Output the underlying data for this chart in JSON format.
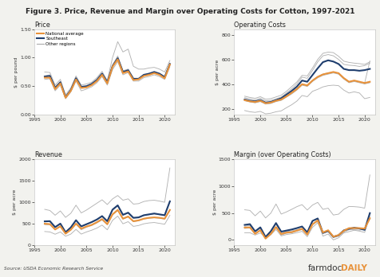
{
  "title": "Figure 3. Price, Revenue and Margin over Operating Costs for Cotton, 1997-2021",
  "source_text": "Source: USDA Economic Research Service",
  "farmdoc_text": "farmdoc",
  "farmdoc_daily_text": "DAILY",
  "years": [
    1997,
    1998,
    1999,
    2000,
    2001,
    2002,
    2003,
    2004,
    2005,
    2006,
    2007,
    2008,
    2009,
    2010,
    2011,
    2012,
    2013,
    2014,
    2015,
    2016,
    2017,
    2018,
    2019,
    2020,
    2021
  ],
  "price": {
    "title": "Price",
    "ylabel": "$ per pound",
    "ylim": [
      0.0,
      1.5
    ],
    "yticks": [
      0.0,
      0.5,
      1.0,
      1.5
    ],
    "yticklabels": [
      "0.00",
      "0.50",
      "1.00",
      "1.50"
    ],
    "national_avg": [
      0.65,
      0.65,
      0.45,
      0.55,
      0.3,
      0.42,
      0.62,
      0.47,
      0.48,
      0.52,
      0.59,
      0.7,
      0.55,
      0.84,
      0.97,
      0.73,
      0.76,
      0.61,
      0.62,
      0.68,
      0.7,
      0.73,
      0.7,
      0.64,
      0.88
    ],
    "southeast": [
      0.67,
      0.68,
      0.47,
      0.57,
      0.31,
      0.43,
      0.64,
      0.49,
      0.5,
      0.54,
      0.61,
      0.72,
      0.57,
      0.85,
      0.99,
      0.75,
      0.78,
      0.63,
      0.63,
      0.7,
      0.72,
      0.75,
      0.72,
      0.66,
      0.89
    ],
    "other_regions": [
      [
        0.68,
        0.7,
        0.49,
        0.58,
        0.32,
        0.44,
        0.63,
        0.48,
        0.51,
        0.54,
        0.61,
        0.72,
        0.57,
        0.87,
        1.03,
        0.77,
        0.8,
        0.64,
        0.64,
        0.7,
        0.72,
        0.75,
        0.72,
        0.67,
        0.89
      ],
      [
        0.62,
        0.63,
        0.42,
        0.52,
        0.28,
        0.4,
        0.59,
        0.42,
        0.45,
        0.49,
        0.56,
        0.67,
        0.52,
        0.79,
        0.93,
        0.7,
        0.74,
        0.59,
        0.59,
        0.65,
        0.67,
        0.7,
        0.67,
        0.62,
        0.84
      ],
      [
        0.75,
        0.74,
        0.52,
        0.62,
        0.35,
        0.47,
        0.68,
        0.52,
        0.54,
        0.57,
        0.65,
        0.76,
        0.6,
        1.0,
        1.28,
        1.1,
        1.15,
        0.85,
        0.8,
        0.8,
        0.82,
        0.83,
        0.8,
        0.75,
        0.95
      ]
    ]
  },
  "operating_costs": {
    "title": "Operating Costs",
    "ylabel": "$ per acre",
    "ylim": [
      150,
      850
    ],
    "yticks": [
      200,
      400,
      600,
      800
    ],
    "yticklabels": [
      "200",
      "400",
      "600",
      "800"
    ],
    "national_avg": [
      270,
      260,
      255,
      265,
      245,
      250,
      265,
      275,
      300,
      330,
      360,
      400,
      390,
      430,
      460,
      480,
      490,
      500,
      490,
      450,
      420,
      430,
      420,
      410,
      420
    ],
    "southeast": [
      275,
      265,
      260,
      270,
      250,
      255,
      270,
      285,
      315,
      345,
      380,
      430,
      420,
      475,
      530,
      580,
      595,
      585,
      565,
      525,
      515,
      515,
      510,
      515,
      525
    ],
    "other_regions": [
      [
        265,
        255,
        248,
        258,
        238,
        243,
        258,
        268,
        295,
        320,
        352,
        392,
        382,
        422,
        452,
        472,
        482,
        492,
        482,
        442,
        412,
        422,
        412,
        402,
        412
      ],
      [
        290,
        280,
        272,
        285,
        265,
        268,
        280,
        295,
        328,
        362,
        402,
        458,
        448,
        512,
        582,
        632,
        642,
        632,
        602,
        562,
        555,
        552,
        545,
        552,
        572
      ],
      [
        185,
        175,
        170,
        178,
        158,
        163,
        175,
        182,
        208,
        232,
        262,
        308,
        298,
        342,
        358,
        378,
        388,
        392,
        388,
        352,
        328,
        338,
        328,
        282,
        292
      ],
      [
        268,
        258,
        250,
        262,
        240,
        245,
        262,
        272,
        298,
        330,
        362,
        402,
        392,
        432,
        462,
        482,
        492,
        498,
        490,
        450,
        418,
        430,
        418,
        410,
        590
      ],
      [
        302,
        292,
        285,
        298,
        278,
        282,
        296,
        310,
        342,
        380,
        418,
        472,
        468,
        532,
        602,
        652,
        662,
        658,
        628,
        588,
        578,
        572,
        568,
        562,
        582
      ]
    ]
  },
  "revenue": {
    "title": "Revenue",
    "ylabel": "$ per acre",
    "ylim": [
      0,
      2000
    ],
    "yticks": [
      0,
      500,
      1000,
      1500,
      2000
    ],
    "yticklabels": [
      "0",
      "500",
      "1000",
      "1500",
      "2000"
    ],
    "national_avg": [
      500,
      490,
      365,
      440,
      268,
      358,
      502,
      385,
      435,
      472,
      535,
      608,
      488,
      718,
      822,
      618,
      668,
      558,
      578,
      618,
      638,
      648,
      638,
      618,
      822
    ],
    "southeast": [
      555,
      560,
      420,
      502,
      302,
      412,
      582,
      438,
      488,
      538,
      598,
      678,
      558,
      828,
      928,
      708,
      758,
      638,
      648,
      698,
      718,
      738,
      718,
      698,
      1022
    ],
    "other_regions": [
      [
        835,
        808,
        698,
        798,
        648,
        742,
        932,
        752,
        818,
        898,
        978,
        1058,
        948,
        1078,
        1158,
        1048,
        1080,
        958,
        968,
        1018,
        1040,
        1048,
        1028,
        1000,
        1800
      ],
      [
        478,
        478,
        368,
        438,
        268,
        358,
        498,
        358,
        418,
        458,
        518,
        588,
        478,
        708,
        808,
        608,
        658,
        548,
        568,
        608,
        628,
        638,
        628,
        608,
        808
      ],
      [
        542,
        548,
        418,
        498,
        298,
        408,
        578,
        428,
        482,
        530,
        590,
        670,
        548,
        818,
        918,
        698,
        748,
        628,
        638,
        690,
        710,
        728,
        710,
        690,
        1010
      ],
      [
        318,
        308,
        255,
        308,
        208,
        258,
        368,
        258,
        308,
        348,
        398,
        468,
        358,
        578,
        678,
        498,
        548,
        438,
        458,
        498,
        518,
        528,
        508,
        488,
        698
      ]
    ]
  },
  "margin": {
    "title": "Margin (over Operating Costs)",
    "ylabel": "$ per acre",
    "ylim": [
      -100,
      1500
    ],
    "yticks": [
      0,
      500,
      1000,
      1500
    ],
    "yticklabels": [
      "0",
      "500",
      "1000",
      "1500"
    ],
    "national_avg": [
      228,
      232,
      112,
      178,
      22,
      108,
      238,
      108,
      135,
      142,
      172,
      205,
      98,
      288,
      362,
      138,
      178,
      58,
      88,
      168,
      218,
      218,
      218,
      208,
      402
    ],
    "southeast": [
      278,
      292,
      158,
      232,
      52,
      158,
      312,
      152,
      172,
      192,
      218,
      248,
      138,
      352,
      398,
      128,
      165,
      55,
      85,
      175,
      205,
      225,
      210,
      185,
      498
    ],
    "other_regions": [
      [
        560,
        548,
        448,
        536,
        408,
        496,
        668,
        480,
        520,
        568,
        618,
        656,
        556,
        648,
        698,
        568,
        590,
        462,
        478,
        568,
        622,
        618,
        610,
        590,
        1210
      ],
      [
        212,
        222,
        118,
        178,
        28,
        112,
        238,
        88,
        122,
        132,
        162,
        192,
        92,
        282,
        352,
        132,
        172,
        52,
        82,
        162,
        212,
        212,
        212,
        202,
        392
      ],
      [
        252,
        268,
        148,
        212,
        32,
        142,
        298,
        132,
        152,
        168,
        188,
        212,
        102,
        308,
        338,
        68,
        108,
        -2,
        38,
        128,
        152,
        178,
        162,
        138,
        438
      ],
      [
        132,
        132,
        88,
        128,
        48,
        92,
        192,
        72,
        98,
        112,
        132,
        158,
        58,
        232,
        318,
        118,
        158,
        42,
        68,
        142,
        188,
        188,
        178,
        202,
        402
      ]
    ]
  },
  "color_national": "#E8923A",
  "color_southeast": "#1F3E6E",
  "color_other": "#AAAAAA",
  "bg_color": "#F2F2EE",
  "panel_bg": "#FFFFFF"
}
